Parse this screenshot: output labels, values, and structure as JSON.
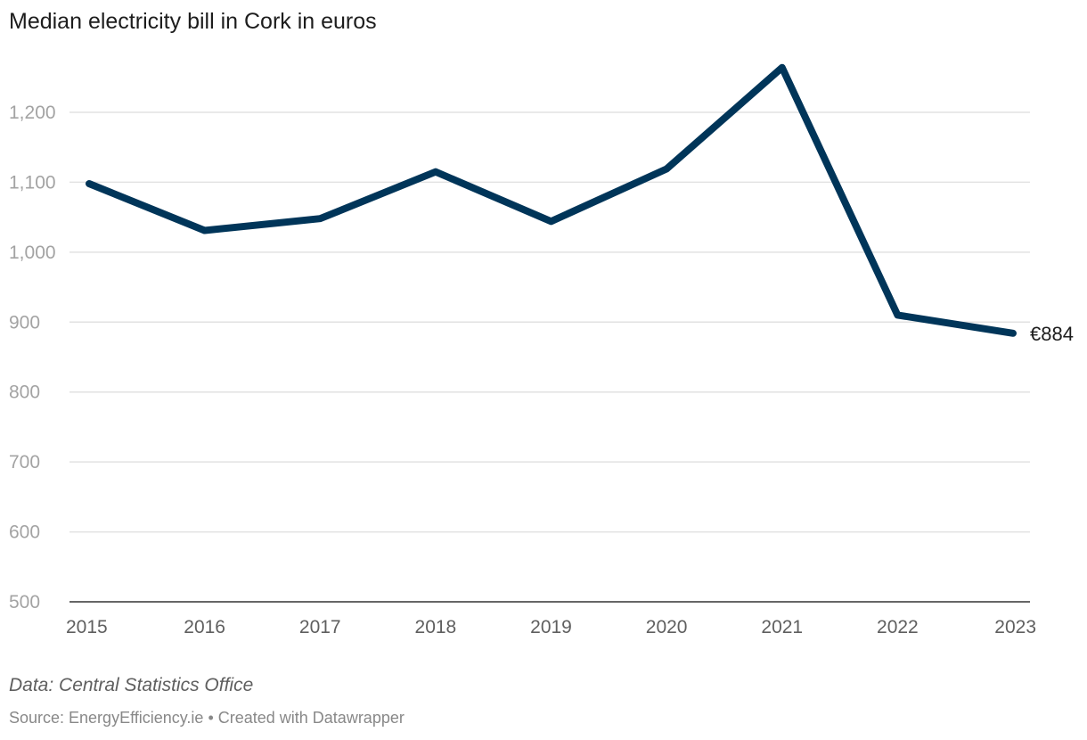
{
  "chart_data": {
    "type": "line",
    "title": "Median electricity bill in Cork in euros",
    "xlabel": "",
    "ylabel": "",
    "x": [
      "2015",
      "2016",
      "2017",
      "2018",
      "2019",
      "2020",
      "2021",
      "2022",
      "2023"
    ],
    "series": [
      {
        "name": "Median electricity bill",
        "values": [
          1098,
          1031,
          1048,
          1115,
          1044,
          1119,
          1264,
          910,
          884
        ],
        "color": "#003559"
      }
    ],
    "ylim": [
      500,
      1200
    ],
    "yticks": [
      500,
      600,
      700,
      800,
      900,
      1000,
      1100,
      1200
    ],
    "ytick_labels": [
      "500",
      "600",
      "700",
      "800",
      "900",
      "1,000",
      "1,100",
      "1,200"
    ],
    "grid": true,
    "end_label": "€884"
  },
  "note": "Data: Central Statistics Office",
  "footer": "Source: EnergyEfficiency.ie • Created with Datawrapper"
}
